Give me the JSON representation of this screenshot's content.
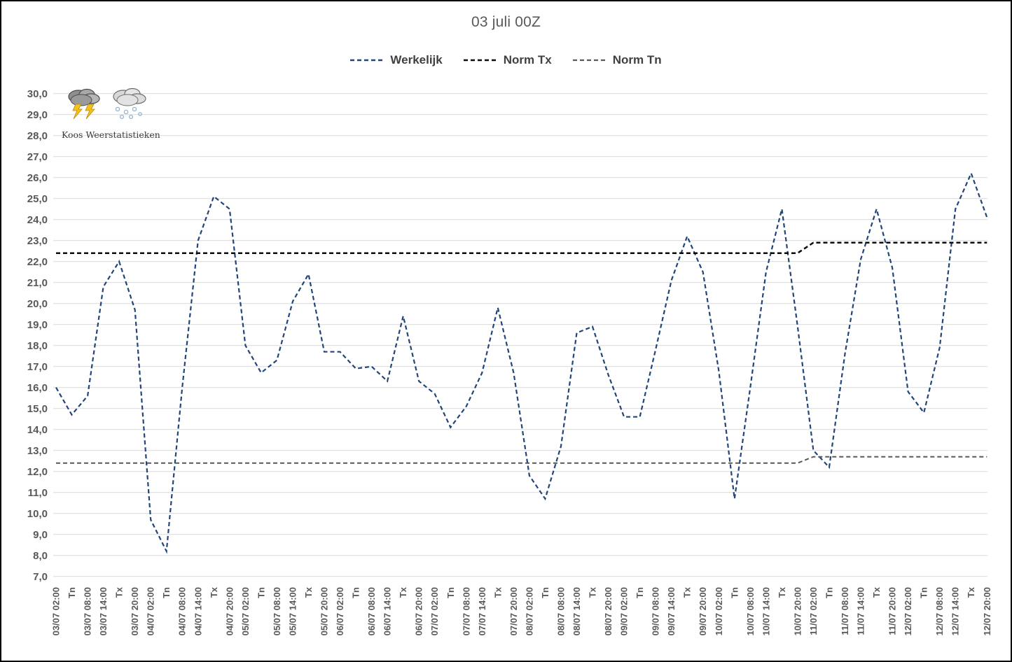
{
  "chart_data": {
    "type": "line",
    "title": "03 juli 00Z",
    "xlabel": "",
    "ylabel": "",
    "ylim": [
      7.0,
      30.0
    ],
    "ytick_step": 1.0,
    "ytick_decimal_separator": ",",
    "grid": "horizontal",
    "legend_position": "top-center",
    "x_labels": [
      "03/07 02:00",
      "Tn",
      "03/07 08:00",
      "03/07 14:00",
      "Tx",
      "03/07 20:00",
      "04/07 02:00",
      "Tn",
      "04/07 08:00",
      "04/07 14:00",
      "Tx",
      "04/07 20:00",
      "05/07 02:00",
      "Tn",
      "05/07 08:00",
      "05/07 14:00",
      "Tx",
      "05/07 20:00",
      "06/07 02:00",
      "Tn",
      "06/07 08:00",
      "06/07 14:00",
      "Tx",
      "06/07 20:00",
      "07/07 02:00",
      "Tn",
      "07/07 08:00",
      "07/07 14:00",
      "Tx",
      "07/07 20:00",
      "08/07 02:00",
      "Tn",
      "08/07 08:00",
      "08/07 14:00",
      "Tx",
      "08/07 20:00",
      "09/07 02:00",
      "Tn",
      "09/07 08:00",
      "09/07 14:00",
      "Tx",
      "09/07 20:00",
      "10/07 02:00",
      "Tn",
      "10/07 08:00",
      "10/07 14:00",
      "Tx",
      "10/07 20:00",
      "11/07 02:00",
      "Tn",
      "11/07 08:00",
      "11/07 14:00",
      "Tx",
      "11/07 20:00",
      "12/07 02:00",
      "Tn",
      "12/07 08:00",
      "12/07 14:00",
      "Tx",
      "12/07 20:00"
    ],
    "series": [
      {
        "name": "Werkelijk",
        "color": "#22457A",
        "dash": "6,4",
        "width": 2.2,
        "values": [
          16.0,
          14.7,
          15.6,
          20.8,
          22.0,
          19.7,
          9.7,
          8.2,
          16.0,
          23.0,
          25.1,
          24.5,
          18.0,
          16.7,
          17.3,
          20.1,
          21.4,
          17.7,
          17.7,
          16.9,
          17.0,
          16.3,
          19.4,
          16.3,
          15.7,
          14.1,
          15.1,
          16.7,
          19.8,
          16.7,
          11.8,
          10.7,
          13.2,
          18.6,
          18.9,
          16.6,
          14.6,
          14.6,
          17.8,
          21.1,
          23.2,
          21.5,
          16.8,
          10.7,
          16.0,
          21.5,
          24.5,
          18.9,
          13.0,
          12.2,
          17.6,
          22.1,
          24.5,
          21.7,
          15.8,
          14.8,
          17.9,
          24.5,
          26.2,
          24.1
        ]
      },
      {
        "name": "Norm Tx",
        "color": "#0d0d0d",
        "dash": "6,4",
        "width": 2.5,
        "values": [
          22.4,
          22.4,
          22.4,
          22.4,
          22.4,
          22.4,
          22.4,
          22.4,
          22.4,
          22.4,
          22.4,
          22.4,
          22.4,
          22.4,
          22.4,
          22.4,
          22.4,
          22.4,
          22.4,
          22.4,
          22.4,
          22.4,
          22.4,
          22.4,
          22.4,
          22.4,
          22.4,
          22.4,
          22.4,
          22.4,
          22.4,
          22.4,
          22.4,
          22.4,
          22.4,
          22.4,
          22.4,
          22.4,
          22.4,
          22.4,
          22.4,
          22.4,
          22.4,
          22.4,
          22.4,
          22.4,
          22.4,
          22.4,
          22.9,
          22.9,
          22.9,
          22.9,
          22.9,
          22.9,
          22.9,
          22.9,
          22.9,
          22.9,
          22.9,
          22.9
        ]
      },
      {
        "name": "Norm Tn",
        "color": "#595959",
        "dash": "6,4",
        "width": 2.0,
        "values": [
          12.4,
          12.4,
          12.4,
          12.4,
          12.4,
          12.4,
          12.4,
          12.4,
          12.4,
          12.4,
          12.4,
          12.4,
          12.4,
          12.4,
          12.4,
          12.4,
          12.4,
          12.4,
          12.4,
          12.4,
          12.4,
          12.4,
          12.4,
          12.4,
          12.4,
          12.4,
          12.4,
          12.4,
          12.4,
          12.4,
          12.4,
          12.4,
          12.4,
          12.4,
          12.4,
          12.4,
          12.4,
          12.4,
          12.4,
          12.4,
          12.4,
          12.4,
          12.4,
          12.4,
          12.4,
          12.4,
          12.4,
          12.4,
          12.7,
          12.7,
          12.7,
          12.7,
          12.7,
          12.7,
          12.7,
          12.7,
          12.7,
          12.7,
          12.7,
          12.7
        ]
      }
    ],
    "annotations": []
  },
  "branding": {
    "caption": "Koos Weerstatistieken",
    "icons": [
      "storm-cloud-lightning-icon",
      "snow-cloud-icon"
    ]
  },
  "layout_colors": {
    "gridline": "#D9D9D9",
    "title_text": "#595959",
    "tick_text": "#595959",
    "legend_text": "#404040",
    "background": "#FFFFFF",
    "border": "#000000"
  }
}
